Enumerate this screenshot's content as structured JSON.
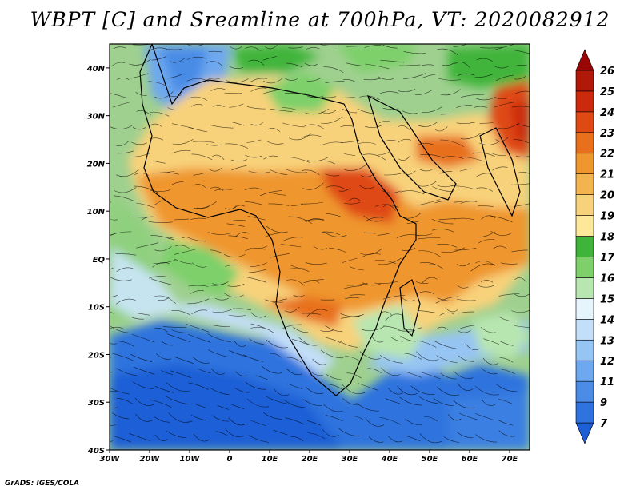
{
  "title": "WBPT [C] and Sreamline at 700hPa, VT: 2020082912",
  "credit": "GrADS: IGES/COLA",
  "map": {
    "lon_range": [
      -30,
      75
    ],
    "lat_range": [
      -40,
      45
    ],
    "lon_ticks": [
      {
        "value": -30,
        "label": "30W"
      },
      {
        "value": -20,
        "label": "20W"
      },
      {
        "value": -10,
        "label": "10W"
      },
      {
        "value": 0,
        "label": "0"
      },
      {
        "value": 10,
        "label": "10E"
      },
      {
        "value": 20,
        "label": "20E"
      },
      {
        "value": 30,
        "label": "30E"
      },
      {
        "value": 40,
        "label": "40E"
      },
      {
        "value": 50,
        "label": "50E"
      },
      {
        "value": 60,
        "label": "60E"
      },
      {
        "value": 70,
        "label": "70E"
      }
    ],
    "lat_ticks": [
      {
        "value": 40,
        "label": "40N"
      },
      {
        "value": 30,
        "label": "30N"
      },
      {
        "value": 20,
        "label": "20N"
      },
      {
        "value": 10,
        "label": "10N"
      },
      {
        "value": 0,
        "label": "EQ"
      },
      {
        "value": -10,
        "label": "10S"
      },
      {
        "value": -20,
        "label": "20S"
      },
      {
        "value": -30,
        "label": "30S"
      },
      {
        "value": -40,
        "label": "40S"
      }
    ]
  },
  "colorbar": {
    "labels": [
      "7",
      "9",
      "11",
      "12",
      "13",
      "14",
      "15",
      "16",
      "17",
      "18",
      "19",
      "20",
      "21",
      "22",
      "23",
      "24",
      "25",
      "26"
    ],
    "colors": [
      "#1f5fd6",
      "#2f73de",
      "#4a8ce6",
      "#6ea8ee",
      "#96c4f3",
      "#c2def8",
      "#e6f4fc",
      "#b8e6b0",
      "#7dd06a",
      "#3fb43a",
      "#fde89a",
      "#f8d27a",
      "#f3b450",
      "#ef962e",
      "#e8701c",
      "#df4a12",
      "#cc2a0c",
      "#b01808",
      "#9a0606"
    ]
  }
}
